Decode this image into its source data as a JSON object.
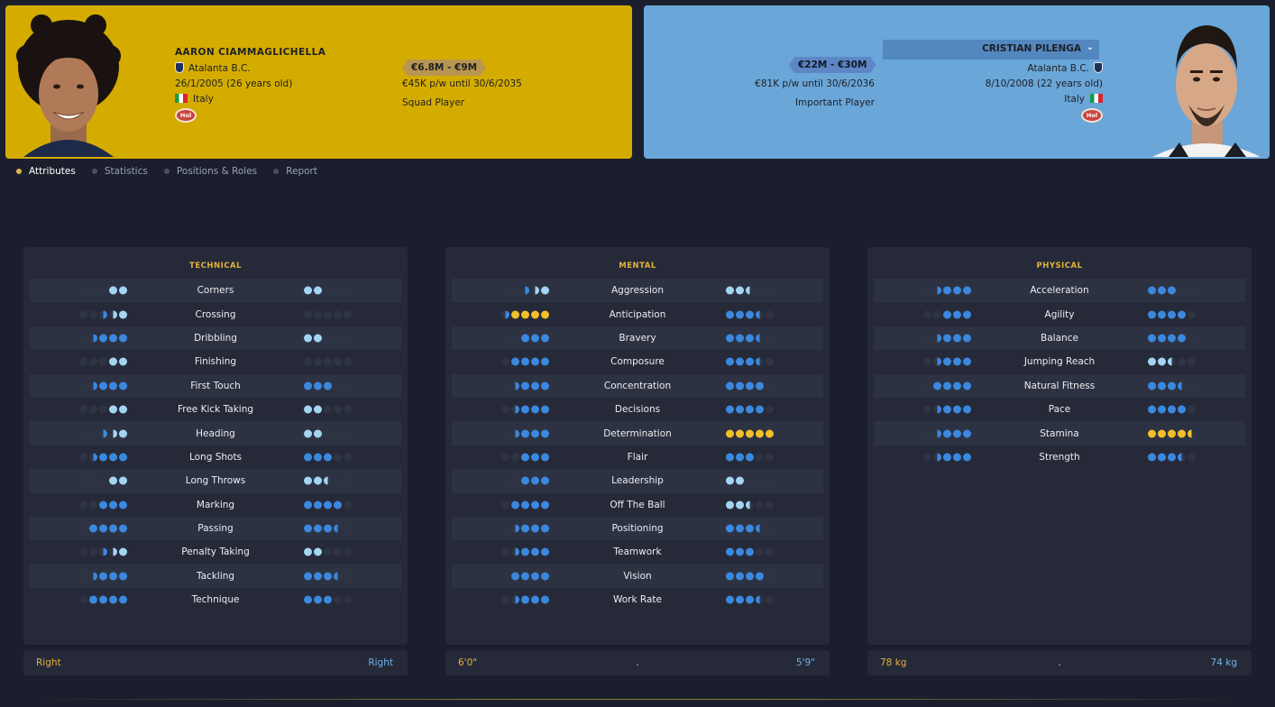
{
  "left_player": {
    "name": "AARON CIAMMAGLICHELLA",
    "club": "Atalanta B.C.",
    "dob": "26/1/2005 (26 years old)",
    "nationality": "Italy",
    "value": "€6.8M - €9M",
    "contract": "€45K p/w until 30/6/2035",
    "squad_status": "Squad Player",
    "badge": "Hol",
    "card_color": "#d4ac00"
  },
  "right_player": {
    "name": "CRISTIAN PILENGA",
    "club": "Atalanta B.C.",
    "dob": "8/10/2008 (22 years old)",
    "nationality": "Italy",
    "value": "€22M - €30M",
    "contract": "€81K p/w until 30/6/2036",
    "squad_status": "Important Player",
    "badge": "Hol",
    "card_color": "#6aa6d8"
  },
  "tabs": [
    {
      "label": "Attributes",
      "active": true
    },
    {
      "label": "Statistics",
      "active": false
    },
    {
      "label": "Positions & Roles",
      "active": false
    },
    {
      "label": "Report",
      "active": false
    }
  ],
  "panels": [
    {
      "title": "TECHNICAL",
      "rows": [
        {
          "label": "Corners",
          "left": "xx.ll",
          "right": "ll..."
        },
        {
          "label": "Crossing",
          "left": "..hLl",
          "right": "....."
        },
        {
          "label": "Dribbling",
          "left": ".hbbb",
          "right": "ll..."
        },
        {
          "label": "Finishing",
          "left": "...ll",
          "right": "....."
        },
        {
          "label": "First Touch",
          "left": ".hbbb",
          "right": "bbb.."
        },
        {
          "label": "Free Kick Taking",
          "left": "...ll",
          "right": "ll..."
        },
        {
          "label": "Heading",
          "left": "..hLl",
          "right": "ll..."
        },
        {
          "label": "Long Shots",
          "left": ".hbbb",
          "right": "bbb.."
        },
        {
          "label": "Long Throws",
          "left": "...ll",
          "right": "llH.."
        },
        {
          "label": "Marking",
          "left": "..bbb",
          "right": "bbbb."
        },
        {
          "label": "Passing",
          "left": ".bbbb",
          "right": "bbbh."
        },
        {
          "label": "Penalty Taking",
          "left": "..hLl",
          "right": "ll..."
        },
        {
          "label": "Tackling",
          "left": ".hbbb",
          "right": "bbbh."
        },
        {
          "label": "Technique",
          "left": ".bbbb",
          "right": "bbb.."
        }
      ],
      "footer": {
        "left": "Right",
        "middle": "",
        "right": "Right"
      }
    },
    {
      "title": "MENTAL",
      "rows": [
        {
          "label": "Aggression",
          "left": "..hLl",
          "right": "llH.."
        },
        {
          "label": "Anticipation",
          "left": "hgggg",
          "right": "bbbh."
        },
        {
          "label": "Bravery",
          "left": "..bbb",
          "right": "bbbh."
        },
        {
          "label": "Composure",
          "left": ".bbbb",
          "right": "bbbh."
        },
        {
          "label": "Concentration",
          "left": ".hbbb",
          "right": "bbbb."
        },
        {
          "label": "Decisions",
          "left": ".hbbb",
          "right": "bbbb."
        },
        {
          "label": "Determination",
          "left": ".hbbb",
          "right": "ggggg"
        },
        {
          "label": "Flair",
          "left": "..bbb",
          "right": "bbb.."
        },
        {
          "label": "Leadership",
          "left": "..bbb",
          "right": "ll..."
        },
        {
          "label": "Off The Ball",
          "left": ".bbbb",
          "right": "llH.."
        },
        {
          "label": "Positioning",
          "left": ".hbbb",
          "right": "bbbh."
        },
        {
          "label": "Teamwork",
          "left": ".hbbb",
          "right": "bbb.."
        },
        {
          "label": "Vision",
          "left": ".bbbb",
          "right": "bbbb."
        },
        {
          "label": "Work Rate",
          "left": ".hbbb",
          "right": "bbbh."
        }
      ],
      "footer": {
        "left": "6'0\"",
        "middle": ".",
        "right": "5'9\""
      }
    },
    {
      "title": "PHYSICAL",
      "rows": [
        {
          "label": "Acceleration",
          "left": ".hbbb",
          "right": "bbb.."
        },
        {
          "label": "Agility",
          "left": "..bbb",
          "right": "bbbb."
        },
        {
          "label": "Balance",
          "left": ".hbbb",
          "right": "bbbb."
        },
        {
          "label": "Jumping Reach",
          "left": ".hbbb",
          "right": "llH.."
        },
        {
          "label": "Natural Fitness",
          "left": ".bbbb",
          "right": "bbbh."
        },
        {
          "label": "Pace",
          "left": ".hbbb",
          "right": "bbbb."
        },
        {
          "label": "Stamina",
          "left": ".hbbb",
          "right": "ggggG"
        },
        {
          "label": "Strength",
          "left": ".hbbb",
          "right": "bbbh."
        }
      ],
      "footer": {
        "left": "78 kg",
        "middle": ".",
        "right": "74 kg"
      }
    }
  ],
  "colors": {
    "accent_gold": "#e2b23c",
    "dot_blue": "#3a88e0",
    "dot_light_blue": "#a3d5f3",
    "dot_gold": "#f0c028"
  }
}
